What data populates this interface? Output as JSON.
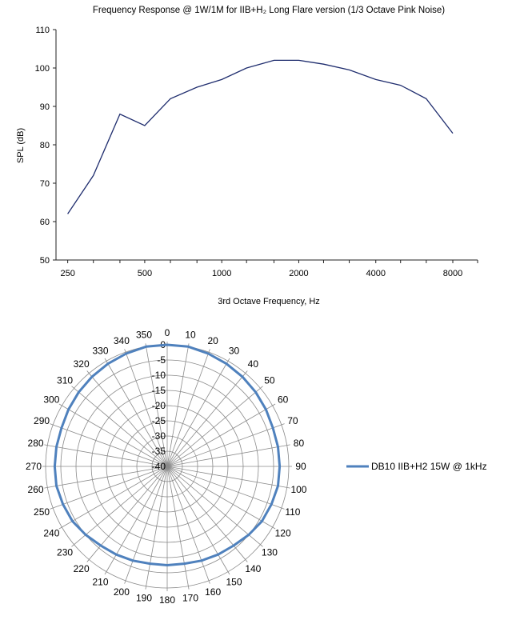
{
  "colors": {
    "line_chart_series": "#1f2d6e",
    "polar_series": "#4f81bd",
    "grid": "#8a8a8a",
    "axis": "#222222"
  },
  "chart_data": [
    {
      "type": "line",
      "title": "Frequency Response @ 1W/1M for IIB+H₂ Long Flare version (1/3 Octave Pink Noise)",
      "xlabel": "3rd Octave Frequency, Hz",
      "ylabel": "SPL (dB)",
      "x_scale": "log",
      "xlim": [
        225,
        10000
      ],
      "ylim": [
        50,
        110
      ],
      "yticks": [
        50,
        60,
        70,
        80,
        90,
        100,
        110
      ],
      "xtick_labels": [
        "250",
        "500",
        "1000",
        "2000",
        "4000",
        "8000"
      ],
      "xtick_values": [
        250,
        500,
        1000,
        2000,
        4000,
        8000
      ],
      "grid": false,
      "series": [
        {
          "x": [
            250,
            315,
            400,
            500,
            630,
            800,
            1000,
            1250,
            1600,
            2000,
            2500,
            3150,
            4000,
            5000,
            6300,
            8000
          ],
          "values": [
            62,
            72,
            88,
            85,
            92,
            95,
            97,
            100,
            102,
            102,
            101,
            99.5,
            97,
            95.5,
            92,
            83
          ]
        }
      ]
    },
    {
      "type": "polar",
      "title": "",
      "angle_labels": [
        "0",
        "10",
        "20",
        "30",
        "40",
        "50",
        "60",
        "70",
        "80",
        "90",
        "100",
        "110",
        "120",
        "130",
        "140",
        "150",
        "160",
        "170",
        "180",
        "190",
        "200",
        "210",
        "220",
        "230",
        "240",
        "250",
        "260",
        "270",
        "280",
        "290",
        "300",
        "310",
        "320",
        "330",
        "340",
        "350"
      ],
      "angles": [
        0,
        10,
        20,
        30,
        40,
        50,
        60,
        70,
        80,
        90,
        100,
        110,
        120,
        130,
        140,
        150,
        160,
        170,
        180,
        190,
        200,
        210,
        220,
        230,
        240,
        250,
        260,
        270,
        280,
        290,
        300,
        310,
        320,
        330,
        340,
        350
      ],
      "radial_labels": [
        "0",
        "-5",
        "-10",
        "-15",
        "-20",
        "-25",
        "-30",
        "-35",
        "-40"
      ],
      "rlim": [
        -40,
        0
      ],
      "grid": true,
      "legend_position": "right",
      "series": [
        {
          "name": "DB10 IIB+H2 15W @ 1kHz",
          "values": [
            0,
            0,
            -0.5,
            -1,
            -1.5,
            -2,
            -2.5,
            -3,
            -3,
            -3,
            -3,
            -3.5,
            -4,
            -5,
            -6,
            -6.5,
            -7,
            -7.5,
            -7.5,
            -7.5,
            -7,
            -6.5,
            -6,
            -5,
            -4,
            -3.5,
            -3,
            -3,
            -3,
            -3,
            -2.5,
            -2,
            -1.5,
            -1,
            -0.5,
            0
          ]
        }
      ]
    }
  ]
}
